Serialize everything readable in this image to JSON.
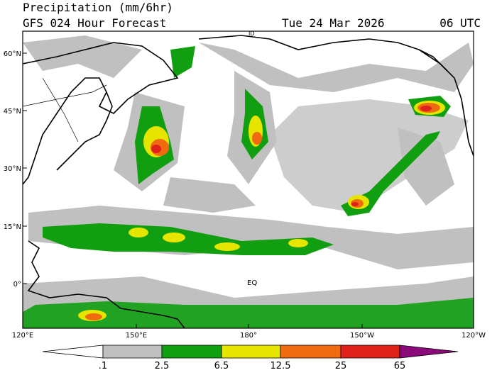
{
  "header": {
    "title": "Precipitation (mm/6hr)",
    "subtitle": "GFS 024 Hour Forecast",
    "date": "Tue 24 Mar 2026",
    "time": "06 UTC"
  },
  "map": {
    "lat_labels": [
      "60°N",
      "45°N",
      "30°N",
      "15°N",
      "0°"
    ],
    "lon_labels": [
      "120°E",
      "150°E",
      "180°",
      "150°W",
      "120°W"
    ],
    "annotations": [
      "EQ",
      "ID"
    ]
  },
  "colorbar": {
    "labels": [
      ".1",
      "2.5",
      "6.5",
      "12.5",
      "25",
      "65"
    ]
  }
}
